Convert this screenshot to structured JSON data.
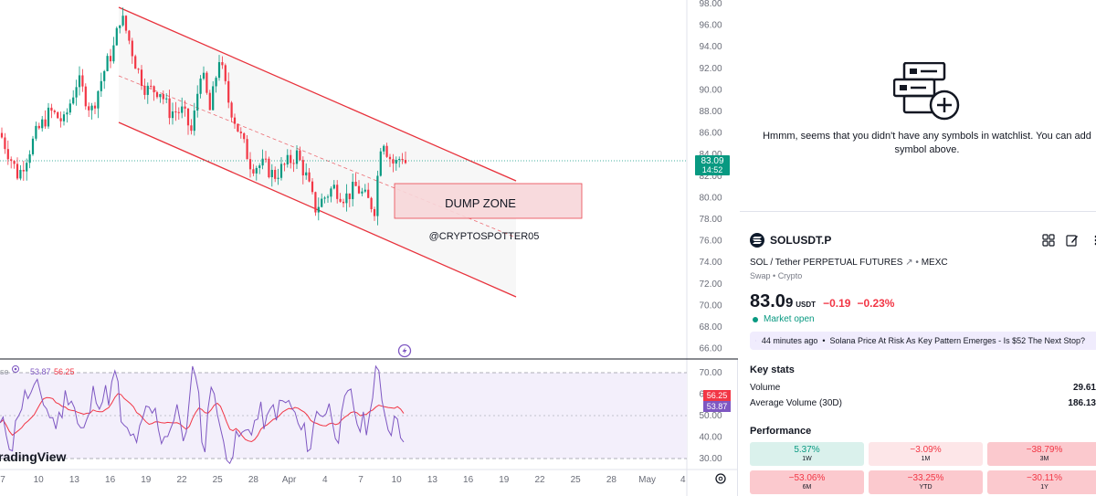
{
  "chart": {
    "price_axis_labels": [
      "98.00",
      "96.00",
      "94.00",
      "92.00",
      "90.00",
      "88.00",
      "86.00",
      "84.00",
      "82.00",
      "80.00",
      "78.00",
      "76.00",
      "74.00",
      "72.00",
      "70.00",
      "68.00",
      "66.00"
    ],
    "rsi_axis_labels": [
      "70.00",
      "60.00",
      "50.00",
      "40.00",
      "30.00"
    ],
    "time_labels": [
      "7",
      "10",
      "13",
      "16",
      "19",
      "22",
      "25",
      "28",
      "Apr",
      "4",
      "7",
      "10",
      "13",
      "16",
      "19",
      "22",
      "25",
      "28",
      "May",
      "4"
    ],
    "current_price": "83.09",
    "countdown": "14:52",
    "dump_zone_label": "DUMP ZONE",
    "watermark_handle": "@CRYPTOSPOTTER05",
    "rsi_legend_name": "se",
    "rsi_value": "53.87",
    "rsi_ma_value": "56.25",
    "rsi_badge_ma": "56.25",
    "rsi_badge_rsi": "53.87",
    "brand_watermark": "radingView",
    "colors": {
      "up": "#089981",
      "down": "#f23645",
      "channel": "#e8323c",
      "rsi": "#7e57c2",
      "rsi_ma": "#f23645"
    }
  },
  "watchlist": {
    "empty_message": "Hmmm, seems that you didn't have any symbols in watchlist. You can add symbol above.",
    "empty_icon": "add-to-list-icon"
  },
  "symbol": {
    "ticker": "SOLUSDT.P",
    "description": "SOL / Tether PERPETUAL FUTURES",
    "exchange": "MEXC",
    "type": "Swap",
    "category": "Crypto",
    "price_main": "83.0",
    "price_tail": "9",
    "currency": "USDT",
    "change": "−0.19",
    "change_pct": "−0.23%",
    "market_status": "Market open"
  },
  "news": {
    "time": "44 minutes ago",
    "headline": "Solana Price At Risk As Key Pattern Emerges - Is $52 The Next Stop?"
  },
  "key_stats": {
    "title": "Key stats",
    "volume_label": "Volume",
    "volume_value": "29.61",
    "avg_volume_label": "Average Volume (30D)",
    "avg_volume_value": "186.13"
  },
  "performance": {
    "title": "Performance",
    "cells": [
      {
        "value": "5.37%",
        "label": "1W"
      },
      {
        "value": "−3.09%",
        "label": "1M"
      },
      {
        "value": "−38.79%",
        "label": "3M"
      },
      {
        "value": "−53.06%",
        "label": "6M"
      },
      {
        "value": "−33.25%",
        "label": "YTD"
      },
      {
        "value": "−30.11%",
        "label": "1Y"
      }
    ]
  }
}
